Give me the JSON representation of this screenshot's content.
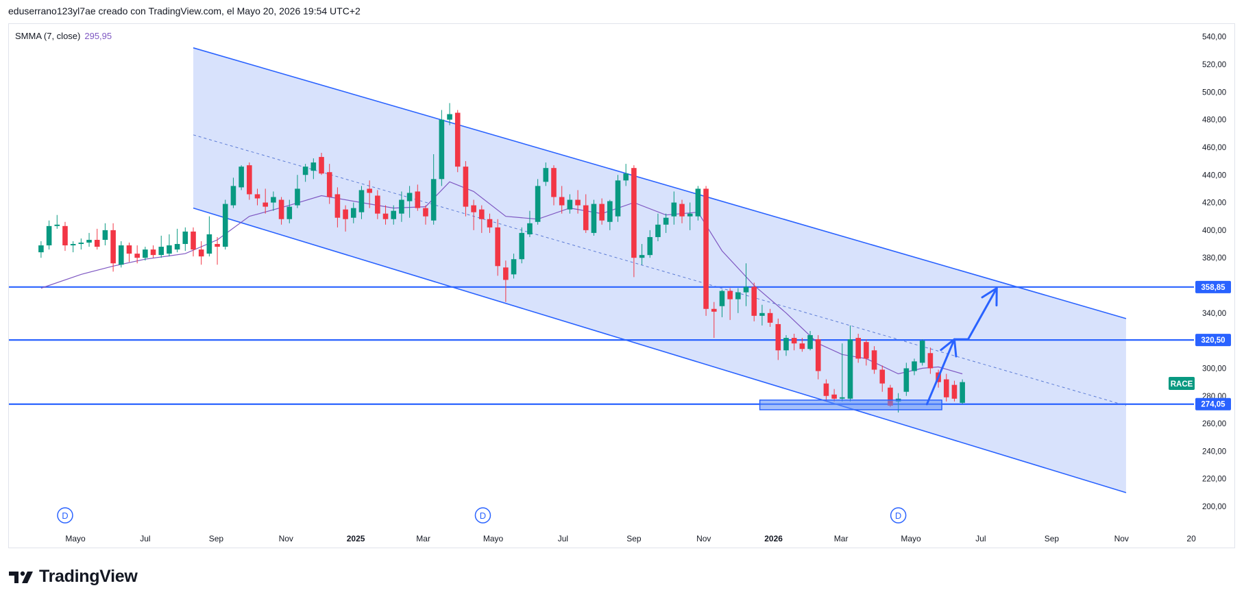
{
  "header": {
    "text": "eduserrano123yl7ae creado con TradingView.com, el Mayo 20, 2026 19:54 UTC+2"
  },
  "legend": {
    "name": "SMMA (7, close)",
    "value": "295,95"
  },
  "logo": {
    "text": "TradingView"
  },
  "symbol_tag": {
    "text": "RACE",
    "color": "#089981"
  },
  "colors": {
    "up": "#089981",
    "down": "#f23645",
    "channel_fill": "#d1ddfc",
    "line": "#2962ff",
    "smma": "#7e57c2"
  },
  "icons": [
    "dividend-icon"
  ],
  "chart_data": {
    "type": "candlestick",
    "symbol": "RACE",
    "interval": "weekly",
    "ylim": [
      190,
      550
    ],
    "y_ticks": [
      "200,00",
      "220,00",
      "240,00",
      "260,00",
      "280,00",
      "300,00",
      "320,00",
      "340,00",
      "360,00",
      "380,00",
      "400,00",
      "420,00",
      "440,00",
      "460,00",
      "480,00",
      "500,00",
      "520,00",
      "540,00"
    ],
    "y_tick_values": [
      200,
      220,
      240,
      260,
      280,
      300,
      320,
      340,
      360,
      380,
      400,
      420,
      440,
      460,
      480,
      500,
      520,
      540
    ],
    "x_ticks": [
      {
        "label": "Mayo",
        "date": "2024-05-01",
        "bold": false
      },
      {
        "label": "Jul",
        "date": "2024-07-01",
        "bold": false
      },
      {
        "label": "Sep",
        "date": "2024-09-01",
        "bold": false
      },
      {
        "label": "Nov",
        "date": "2024-11-01",
        "bold": false
      },
      {
        "label": "2025",
        "date": "2025-01-01",
        "bold": true
      },
      {
        "label": "Mar",
        "date": "2025-03-01",
        "bold": false
      },
      {
        "label": "Mayo",
        "date": "2025-05-01",
        "bold": false
      },
      {
        "label": "Jul",
        "date": "2025-07-01",
        "bold": false
      },
      {
        "label": "Sep",
        "date": "2025-09-01",
        "bold": false
      },
      {
        "label": "Nov",
        "date": "2025-11-01",
        "bold": false
      },
      {
        "label": "2026",
        "date": "2026-01-01",
        "bold": true
      },
      {
        "label": "Mar",
        "date": "2026-03-01",
        "bold": false
      },
      {
        "label": "Mayo",
        "date": "2026-05-01",
        "bold": false
      },
      {
        "label": "Jul",
        "date": "2026-07-01",
        "bold": false
      },
      {
        "label": "Sep",
        "date": "2026-09-01",
        "bold": false
      },
      {
        "label": "Nov",
        "date": "2026-11-01",
        "bold": false
      },
      {
        "label": "20",
        "date": "2027-01-01",
        "bold": false
      }
    ],
    "horizontal_levels": [
      {
        "value": 358.85,
        "label": "358,85"
      },
      {
        "value": 320.5,
        "label": "320,50"
      },
      {
        "value": 274.05,
        "label": "274,05"
      }
    ],
    "channel": {
      "upper": [
        [
          "2024-08-12",
          532
        ],
        [
          "2026-11-05",
          336
        ]
      ],
      "lower": [
        [
          "2024-08-12",
          416
        ],
        [
          "2026-11-05",
          210
        ]
      ],
      "mid": [
        [
          "2024-08-12",
          469
        ],
        [
          "2026-11-05",
          273
        ]
      ]
    },
    "support_zone": {
      "x0": "2025-12-20",
      "x1": "2026-05-28",
      "y0": 270,
      "y1": 277
    },
    "projection_arrow": [
      [
        "2026-05-15",
        274
      ],
      [
        "2026-06-08",
        321
      ],
      [
        "2026-06-20",
        321
      ],
      [
        "2026-07-15",
        358
      ]
    ],
    "dividends": [
      "2024-04-22",
      "2025-04-22",
      "2026-04-20"
    ],
    "candles": [
      {
        "d": "2024-04-01",
        "o": 384,
        "h": 392,
        "l": 380,
        "c": 389
      },
      {
        "d": "2024-04-08",
        "o": 389,
        "h": 407,
        "l": 386,
        "c": 403
      },
      {
        "d": "2024-04-15",
        "o": 403,
        "h": 411,
        "l": 401,
        "c": 404
      },
      {
        "d": "2024-04-22",
        "o": 403,
        "h": 406,
        "l": 385,
        "c": 389
      },
      {
        "d": "2024-04-29",
        "o": 389,
        "h": 392,
        "l": 384,
        "c": 390
      },
      {
        "d": "2024-05-06",
        "o": 390,
        "h": 394,
        "l": 386,
        "c": 391
      },
      {
        "d": "2024-05-13",
        "o": 391,
        "h": 398,
        "l": 388,
        "c": 393
      },
      {
        "d": "2024-05-20",
        "o": 393,
        "h": 401,
        "l": 386,
        "c": 388
      },
      {
        "d": "2024-05-27",
        "o": 393,
        "h": 405,
        "l": 389,
        "c": 400
      },
      {
        "d": "2024-06-03",
        "o": 400,
        "h": 405,
        "l": 370,
        "c": 376
      },
      {
        "d": "2024-06-10",
        "o": 375,
        "h": 392,
        "l": 373,
        "c": 389
      },
      {
        "d": "2024-06-17",
        "o": 389,
        "h": 391,
        "l": 377,
        "c": 383
      },
      {
        "d": "2024-06-24",
        "o": 383,
        "h": 389,
        "l": 376,
        "c": 380
      },
      {
        "d": "2024-07-01",
        "o": 380,
        "h": 388,
        "l": 378,
        "c": 386
      },
      {
        "d": "2024-07-08",
        "o": 386,
        "h": 389,
        "l": 380,
        "c": 382
      },
      {
        "d": "2024-07-15",
        "o": 382,
        "h": 396,
        "l": 380,
        "c": 388
      },
      {
        "d": "2024-07-22",
        "o": 383,
        "h": 397,
        "l": 381,
        "c": 389
      },
      {
        "d": "2024-07-29",
        "o": 386,
        "h": 401,
        "l": 384,
        "c": 390
      },
      {
        "d": "2024-08-05",
        "o": 390,
        "h": 402,
        "l": 385,
        "c": 399
      },
      {
        "d": "2024-08-12",
        "o": 399,
        "h": 402,
        "l": 381,
        "c": 386
      },
      {
        "d": "2024-08-19",
        "o": 386,
        "h": 392,
        "l": 375,
        "c": 381
      },
      {
        "d": "2024-08-26",
        "o": 383,
        "h": 410,
        "l": 381,
        "c": 397
      },
      {
        "d": "2024-09-02",
        "o": 390,
        "h": 395,
        "l": 375,
        "c": 388
      },
      {
        "d": "2024-09-09",
        "o": 388,
        "h": 422,
        "l": 386,
        "c": 419
      },
      {
        "d": "2024-09-16",
        "o": 418,
        "h": 438,
        "l": 416,
        "c": 432
      },
      {
        "d": "2024-09-23",
        "o": 431,
        "h": 447,
        "l": 429,
        "c": 446
      },
      {
        "d": "2024-09-30",
        "o": 447,
        "h": 449,
        "l": 422,
        "c": 426
      },
      {
        "d": "2024-10-07",
        "o": 426,
        "h": 430,
        "l": 418,
        "c": 423
      },
      {
        "d": "2024-10-14",
        "o": 420,
        "h": 430,
        "l": 412,
        "c": 417
      },
      {
        "d": "2024-10-21",
        "o": 420,
        "h": 428,
        "l": 414,
        "c": 424
      },
      {
        "d": "2024-10-28",
        "o": 422,
        "h": 424,
        "l": 404,
        "c": 408
      },
      {
        "d": "2024-11-04",
        "o": 408,
        "h": 422,
        "l": 405,
        "c": 417
      },
      {
        "d": "2024-11-11",
        "o": 418,
        "h": 440,
        "l": 416,
        "c": 430
      },
      {
        "d": "2024-11-18",
        "o": 440,
        "h": 448,
        "l": 435,
        "c": 446
      },
      {
        "d": "2024-11-25",
        "o": 443,
        "h": 452,
        "l": 437,
        "c": 449
      },
      {
        "d": "2024-12-02",
        "o": 453,
        "h": 456,
        "l": 440,
        "c": 441
      },
      {
        "d": "2024-12-09",
        "o": 442,
        "h": 448,
        "l": 419,
        "c": 424
      },
      {
        "d": "2024-12-16",
        "o": 426,
        "h": 431,
        "l": 402,
        "c": 409
      },
      {
        "d": "2024-12-23",
        "o": 415,
        "h": 418,
        "l": 399,
        "c": 408
      },
      {
        "d": "2024-12-30",
        "o": 409,
        "h": 420,
        "l": 405,
        "c": 416
      },
      {
        "d": "2025-01-06",
        "o": 413,
        "h": 432,
        "l": 408,
        "c": 429
      },
      {
        "d": "2025-01-13",
        "o": 430,
        "h": 436,
        "l": 416,
        "c": 427
      },
      {
        "d": "2025-01-20",
        "o": 425,
        "h": 429,
        "l": 408,
        "c": 412
      },
      {
        "d": "2025-01-27",
        "o": 412,
        "h": 418,
        "l": 404,
        "c": 408
      },
      {
        "d": "2025-02-03",
        "o": 408,
        "h": 418,
        "l": 404,
        "c": 414
      },
      {
        "d": "2025-02-10",
        "o": 412,
        "h": 428,
        "l": 406,
        "c": 422
      },
      {
        "d": "2025-02-17",
        "o": 421,
        "h": 432,
        "l": 409,
        "c": 427
      },
      {
        "d": "2025-02-24",
        "o": 428,
        "h": 433,
        "l": 414,
        "c": 416
      },
      {
        "d": "2025-03-03",
        "o": 416,
        "h": 418,
        "l": 404,
        "c": 410
      },
      {
        "d": "2025-03-10",
        "o": 407,
        "h": 455,
        "l": 404,
        "c": 437
      },
      {
        "d": "2025-03-17",
        "o": 437,
        "h": 487,
        "l": 432,
        "c": 480
      },
      {
        "d": "2025-03-24",
        "o": 480,
        "h": 492,
        "l": 476,
        "c": 484
      },
      {
        "d": "2025-03-31",
        "o": 485,
        "h": 487,
        "l": 442,
        "c": 446
      },
      {
        "d": "2025-04-07",
        "o": 446,
        "h": 450,
        "l": 410,
        "c": 417
      },
      {
        "d": "2025-04-14",
        "o": 418,
        "h": 422,
        "l": 400,
        "c": 413
      },
      {
        "d": "2025-04-21",
        "o": 415,
        "h": 418,
        "l": 398,
        "c": 408
      },
      {
        "d": "2025-04-28",
        "o": 408,
        "h": 412,
        "l": 398,
        "c": 402
      },
      {
        "d": "2025-05-05",
        "o": 402,
        "h": 408,
        "l": 367,
        "c": 374
      },
      {
        "d": "2025-05-12",
        "o": 373,
        "h": 378,
        "l": 348,
        "c": 364
      },
      {
        "d": "2025-05-19",
        "o": 368,
        "h": 383,
        "l": 365,
        "c": 379
      },
      {
        "d": "2025-05-26",
        "o": 379,
        "h": 402,
        "l": 376,
        "c": 398
      },
      {
        "d": "2025-06-02",
        "o": 397,
        "h": 414,
        "l": 395,
        "c": 405
      },
      {
        "d": "2025-06-09",
        "o": 406,
        "h": 437,
        "l": 404,
        "c": 432
      },
      {
        "d": "2025-06-16",
        "o": 435,
        "h": 449,
        "l": 432,
        "c": 445
      },
      {
        "d": "2025-06-23",
        "o": 445,
        "h": 447,
        "l": 418,
        "c": 424
      },
      {
        "d": "2025-06-30",
        "o": 424,
        "h": 432,
        "l": 412,
        "c": 418
      },
      {
        "d": "2025-07-07",
        "o": 415,
        "h": 426,
        "l": 412,
        "c": 422
      },
      {
        "d": "2025-07-14",
        "o": 422,
        "h": 429,
        "l": 412,
        "c": 418
      },
      {
        "d": "2025-07-21",
        "o": 418,
        "h": 426,
        "l": 398,
        "c": 400
      },
      {
        "d": "2025-07-28",
        "o": 398,
        "h": 422,
        "l": 396,
        "c": 419
      },
      {
        "d": "2025-08-04",
        "o": 419,
        "h": 423,
        "l": 404,
        "c": 407
      },
      {
        "d": "2025-08-11",
        "o": 406,
        "h": 422,
        "l": 400,
        "c": 421
      },
      {
        "d": "2025-08-18",
        "o": 410,
        "h": 440,
        "l": 406,
        "c": 436
      },
      {
        "d": "2025-08-25",
        "o": 436,
        "h": 448,
        "l": 432,
        "c": 441
      },
      {
        "d": "2025-09-01",
        "o": 445,
        "h": 447,
        "l": 366,
        "c": 380
      },
      {
        "d": "2025-09-08",
        "o": 380,
        "h": 390,
        "l": 375,
        "c": 382
      },
      {
        "d": "2025-09-15",
        "o": 382,
        "h": 400,
        "l": 380,
        "c": 395
      },
      {
        "d": "2025-09-22",
        "o": 395,
        "h": 412,
        "l": 392,
        "c": 404
      },
      {
        "d": "2025-09-29",
        "o": 404,
        "h": 412,
        "l": 398,
        "c": 409
      },
      {
        "d": "2025-10-06",
        "o": 410,
        "h": 428,
        "l": 404,
        "c": 420
      },
      {
        "d": "2025-10-13",
        "o": 419,
        "h": 422,
        "l": 405,
        "c": 410
      },
      {
        "d": "2025-10-20",
        "o": 410,
        "h": 420,
        "l": 400,
        "c": 412
      },
      {
        "d": "2025-10-27",
        "o": 410,
        "h": 432,
        "l": 407,
        "c": 430
      },
      {
        "d": "2025-11-03",
        "o": 430,
        "h": 432,
        "l": 338,
        "c": 343
      },
      {
        "d": "2025-11-10",
        "o": 343,
        "h": 348,
        "l": 322,
        "c": 341
      },
      {
        "d": "2025-11-17",
        "o": 345,
        "h": 357,
        "l": 337,
        "c": 356
      },
      {
        "d": "2025-11-24",
        "o": 356,
        "h": 358,
        "l": 335,
        "c": 350
      },
      {
        "d": "2025-12-01",
        "o": 350,
        "h": 358,
        "l": 340,
        "c": 355
      },
      {
        "d": "2025-12-08",
        "o": 355,
        "h": 376,
        "l": 345,
        "c": 359
      },
      {
        "d": "2025-12-15",
        "o": 359,
        "h": 362,
        "l": 334,
        "c": 338
      },
      {
        "d": "2025-12-22",
        "o": 338,
        "h": 346,
        "l": 331,
        "c": 340
      },
      {
        "d": "2025-12-29",
        "o": 340,
        "h": 343,
        "l": 330,
        "c": 333
      },
      {
        "d": "2026-01-05",
        "o": 332,
        "h": 336,
        "l": 306,
        "c": 313
      },
      {
        "d": "2026-01-12",
        "o": 313,
        "h": 324,
        "l": 309,
        "c": 322
      },
      {
        "d": "2026-01-19",
        "o": 322,
        "h": 325,
        "l": 313,
        "c": 318
      },
      {
        "d": "2026-01-26",
        "o": 318,
        "h": 322,
        "l": 312,
        "c": 314
      },
      {
        "d": "2026-02-02",
        "o": 314,
        "h": 327,
        "l": 313,
        "c": 324
      },
      {
        "d": "2026-02-09",
        "o": 321,
        "h": 324,
        "l": 292,
        "c": 298
      },
      {
        "d": "2026-02-16",
        "o": 289,
        "h": 292,
        "l": 276,
        "c": 280
      },
      {
        "d": "2026-02-23",
        "o": 281,
        "h": 285,
        "l": 276,
        "c": 278
      },
      {
        "d": "2026-03-02",
        "o": 278,
        "h": 318,
        "l": 276,
        "c": 279
      },
      {
        "d": "2026-03-09",
        "o": 278,
        "h": 331,
        "l": 276,
        "c": 321
      },
      {
        "d": "2026-03-16",
        "o": 322,
        "h": 325,
        "l": 304,
        "c": 307
      },
      {
        "d": "2026-03-23",
        "o": 319,
        "h": 321,
        "l": 302,
        "c": 307
      },
      {
        "d": "2026-03-30",
        "o": 313,
        "h": 316,
        "l": 296,
        "c": 299
      },
      {
        "d": "2026-04-06",
        "o": 299,
        "h": 302,
        "l": 283,
        "c": 289
      },
      {
        "d": "2026-04-13",
        "o": 286,
        "h": 288,
        "l": 272,
        "c": 273
      },
      {
        "d": "2026-04-20",
        "o": 276,
        "h": 282,
        "l": 268,
        "c": 278
      },
      {
        "d": "2026-04-27",
        "o": 283,
        "h": 304,
        "l": 280,
        "c": 300
      },
      {
        "d": "2026-05-04",
        "o": 298,
        "h": 307,
        "l": 295,
        "c": 305
      },
      {
        "d": "2026-05-11",
        "o": 304,
        "h": 321,
        "l": 302,
        "c": 320
      },
      {
        "d": "2026-05-18",
        "o": 311,
        "h": 315,
        "l": 296,
        "c": 300
      },
      {
        "d": "2026-05-25",
        "o": 297,
        "h": 299,
        "l": 286,
        "c": 290
      },
      {
        "d": "2026-06-01",
        "o": 292,
        "h": 296,
        "l": 276,
        "c": 279
      },
      {
        "d": "2026-06-08",
        "o": 288,
        "h": 291,
        "l": 276,
        "c": 278
      },
      {
        "d": "2026-06-15",
        "o": 275,
        "h": 292,
        "l": 274,
        "c": 290
      }
    ],
    "smma": [
      [
        "2024-04-01",
        358
      ],
      [
        "2024-05-06",
        368
      ],
      [
        "2024-06-03",
        374
      ],
      [
        "2024-07-01",
        379
      ],
      [
        "2024-08-05",
        383
      ],
      [
        "2024-09-02",
        393
      ],
      [
        "2024-09-30",
        410
      ],
      [
        "2024-11-04",
        418
      ],
      [
        "2024-12-02",
        425
      ],
      [
        "2025-01-06",
        420
      ],
      [
        "2025-02-03",
        416
      ],
      [
        "2025-03-03",
        417
      ],
      [
        "2025-03-24",
        435
      ],
      [
        "2025-04-14",
        428
      ],
      [
        "2025-05-12",
        410
      ],
      [
        "2025-06-09",
        408
      ],
      [
        "2025-07-07",
        416
      ],
      [
        "2025-08-04",
        412
      ],
      [
        "2025-09-01",
        420
      ],
      [
        "2025-09-29",
        411
      ],
      [
        "2025-10-27",
        413
      ],
      [
        "2025-11-17",
        385
      ],
      [
        "2025-12-15",
        360
      ],
      [
        "2026-01-12",
        340
      ],
      [
        "2026-02-09",
        318
      ],
      [
        "2026-03-02",
        310
      ],
      [
        "2026-03-23",
        307
      ],
      [
        "2026-04-20",
        296
      ],
      [
        "2026-05-11",
        300
      ],
      [
        "2026-05-25",
        301
      ],
      [
        "2026-06-15",
        296
      ]
    ]
  }
}
